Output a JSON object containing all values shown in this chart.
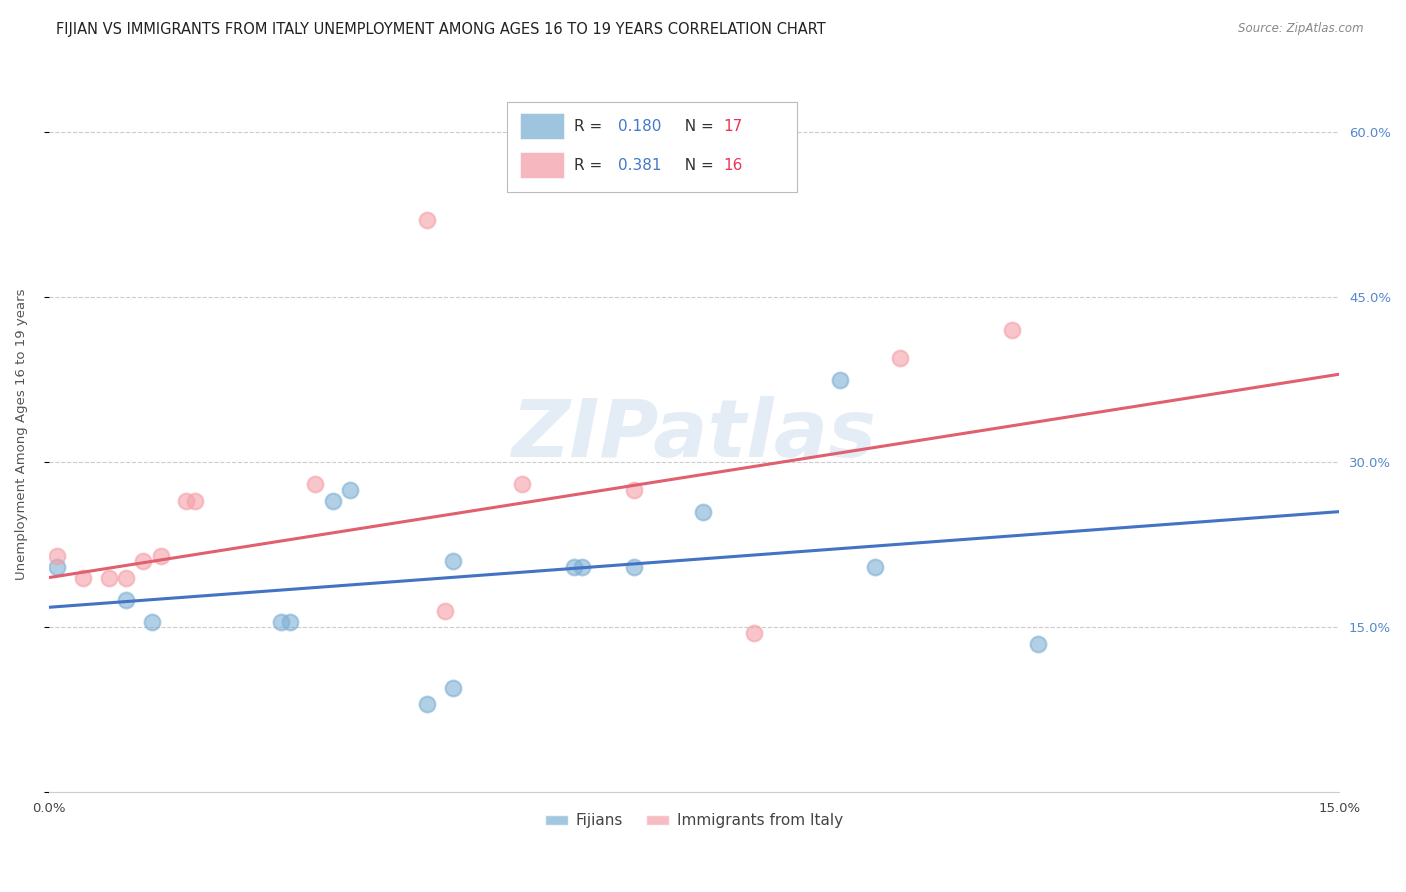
{
  "title": "FIJIAN VS IMMIGRANTS FROM ITALY UNEMPLOYMENT AMONG AGES 16 TO 19 YEARS CORRELATION CHART",
  "source": "Source: ZipAtlas.com",
  "ylabel": "Unemployment Among Ages 16 to 19 years",
  "xlim": [
    0,
    0.15
  ],
  "ylim": [
    0,
    0.65
  ],
  "xticks": [
    0.0,
    0.03,
    0.06,
    0.09,
    0.12,
    0.15
  ],
  "yticks": [
    0.0,
    0.15,
    0.3,
    0.45,
    0.6
  ],
  "fijian_color": "#7EB0D4",
  "italy_color": "#F4A0A8",
  "fijian_label": "Fijians",
  "italy_label": "Immigrants from Italy",
  "watermark": "ZIPatlas",
  "watermark_color": "#C5D8ED",
  "background_color": "#FFFFFF",
  "fijian_x": [
    0.001,
    0.009,
    0.012,
    0.027,
    0.028,
    0.033,
    0.035,
    0.044,
    0.047,
    0.047,
    0.061,
    0.062,
    0.068,
    0.076,
    0.092,
    0.096,
    0.115
  ],
  "fijian_y": [
    0.205,
    0.175,
    0.155,
    0.155,
    0.155,
    0.265,
    0.275,
    0.08,
    0.095,
    0.21,
    0.205,
    0.205,
    0.205,
    0.255,
    0.375,
    0.205,
    0.135
  ],
  "italy_x": [
    0.001,
    0.004,
    0.007,
    0.009,
    0.011,
    0.013,
    0.016,
    0.017,
    0.031,
    0.044,
    0.046,
    0.055,
    0.068,
    0.082,
    0.099,
    0.112
  ],
  "italy_y": [
    0.215,
    0.195,
    0.195,
    0.195,
    0.21,
    0.215,
    0.265,
    0.265,
    0.28,
    0.52,
    0.165,
    0.28,
    0.275,
    0.145,
    0.395,
    0.42
  ],
  "blue_line_x": [
    0.0,
    0.15
  ],
  "blue_line_y": [
    0.168,
    0.255
  ],
  "pink_line_x": [
    0.0,
    0.15
  ],
  "pink_line_y": [
    0.195,
    0.38
  ],
  "blue_line_color": "#4472C4",
  "pink_line_color": "#E06070",
  "title_fontsize": 10.5,
  "axis_fontsize": 9.5,
  "tick_fontsize": 9.5,
  "legend_fontsize": 11,
  "marker_size": 130,
  "line_width": 2.2
}
